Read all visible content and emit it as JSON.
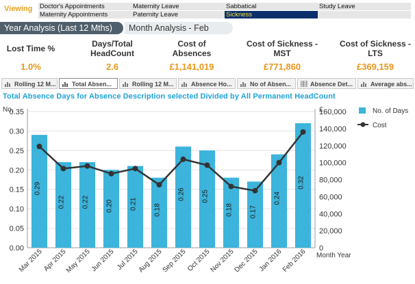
{
  "viewing": {
    "label": "Viewing",
    "filters": [
      {
        "label": "Doctor's Appointments",
        "selected": false
      },
      {
        "label": "Maternity Leave",
        "selected": false
      },
      {
        "label": "Sabbatical",
        "selected": false
      },
      {
        "label": "Study Leave",
        "selected": false
      },
      {
        "label": "Maternity Appointments",
        "selected": false
      },
      {
        "label": "Paternity Leave",
        "selected": false
      },
      {
        "label": "Sickness",
        "selected": true
      },
      {
        "label": "",
        "selected": false
      }
    ]
  },
  "tabs": [
    {
      "label": "Year Analysis (Last 12 Mths)",
      "active": true
    },
    {
      "label": "Month Analysis - Feb",
      "active": false
    }
  ],
  "kpis": [
    {
      "title": "Lost Time %",
      "value": "1.0%"
    },
    {
      "title": "Days/Total HeadCount",
      "value": "2.6"
    },
    {
      "title": "Cost of Absences",
      "value": "£1,141,019"
    },
    {
      "title": "Cost of Sickness - MST",
      "value": "£771,860"
    },
    {
      "title": "Cost of Sickness - LTS",
      "value": "£369,159"
    }
  ],
  "chart_tabs": [
    {
      "label": "Rolling 12 M...",
      "active": false
    },
    {
      "label": "Total Absen...",
      "active": true
    },
    {
      "label": "Rolling 12 M...",
      "active": false
    },
    {
      "label": "Absence Ho...",
      "active": false
    },
    {
      "label": "No of Absen...",
      "active": false
    },
    {
      "label": "Absence Det...",
      "active": false
    },
    {
      "label": "Average abs...",
      "active": false
    }
  ],
  "chart_title": "Total Absence Days for Absence Description selected Divided by All Permanent HeadCount",
  "colors": {
    "bar": "#3cb4dc",
    "line": "#333333",
    "accent": "#e8961c",
    "title": "#1fa3d6"
  },
  "chart_data": {
    "type": "bar+line",
    "categories": [
      "Mar 2015",
      "Apr 2015",
      "May 2015",
      "Jun 2015",
      "Jul 2015",
      "Aug 2015",
      "Sep 2015",
      "Oct 2015",
      "Nov 2015",
      "Dec 2015",
      "Jan 2016",
      "Feb 2016"
    ],
    "bar_series": {
      "name": "No. of Days",
      "values": [
        0.29,
        0.22,
        0.22,
        0.2,
        0.21,
        0.18,
        0.26,
        0.25,
        0.18,
        0.17,
        0.24,
        0.32
      ],
      "labels": [
        "0.29",
        "0.22",
        "0.22",
        "0.20",
        "0.21",
        "0.18",
        "0.26",
        "0.25",
        "0.18",
        "0.17",
        "0.24",
        "0.32"
      ]
    },
    "line_series": {
      "name": "Cost",
      "values": [
        119000,
        93000,
        96000,
        87000,
        93000,
        74000,
        104000,
        97000,
        72000,
        67000,
        100000,
        136000
      ]
    },
    "y_left": {
      "label": "No,",
      "ticks": [
        "0.00",
        "0.05",
        "0.10",
        "0.15",
        "0.20",
        "0.25",
        "0.30",
        "0.35"
      ],
      "min": 0,
      "max": 0.35
    },
    "y_right": {
      "label": "£",
      "ticks": [
        "0",
        "20,000",
        "40,000",
        "60,000",
        "80,000",
        "100,000",
        "120,000",
        "140,000",
        "160,000"
      ],
      "min": 0,
      "max": 160000
    },
    "xlabel": "Month Year",
    "grid": true,
    "legend_position": "right"
  }
}
